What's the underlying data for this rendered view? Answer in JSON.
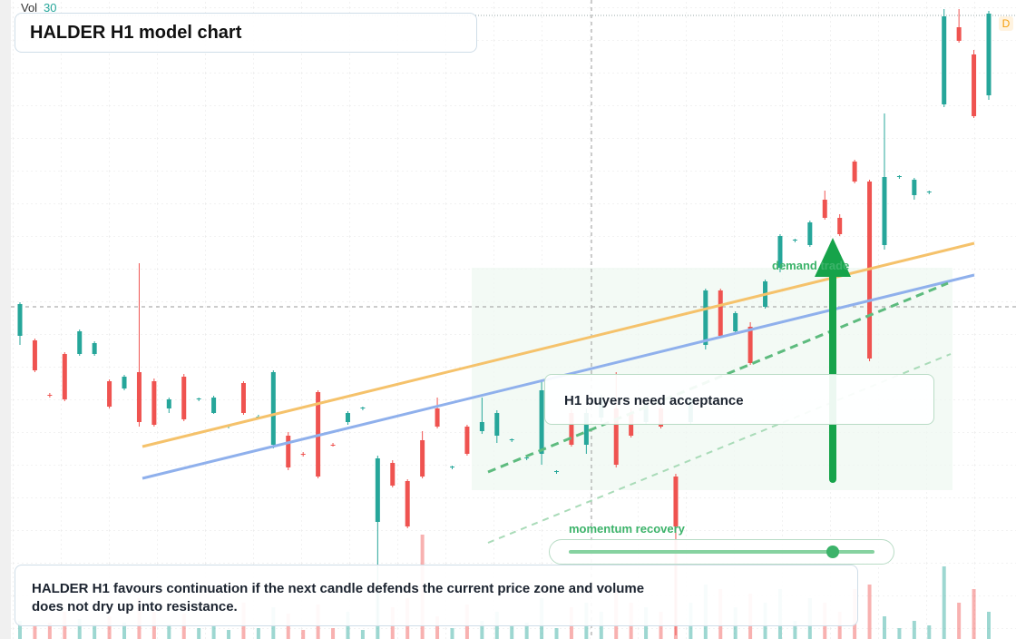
{
  "toolbar": {
    "vol_label": "Vol",
    "vol_value": 30
  },
  "title": "HALDER H1 model chart",
  "badge": "D",
  "annotations": {
    "demand": "demand trade",
    "acceptance": "H1 buyers need acceptance",
    "momentum": "momentum recovery"
  },
  "note": "HALDER H1 favours continuation if the next candle defends the current price zone and volume does not dry up into resistance.",
  "chart_data": {
    "type": "candlestick",
    "candles": [
      [
        330,
        367,
        320,
        365
      ],
      [
        325,
        327,
        290,
        292
      ],
      [
        265,
        267,
        262,
        264
      ],
      [
        310,
        312,
        258,
        260
      ],
      [
        310,
        337,
        308,
        335
      ],
      [
        310,
        324,
        308,
        322
      ],
      [
        280,
        282,
        250,
        252
      ],
      [
        272,
        287,
        270,
        285
      ],
      [
        290,
        410,
        230,
        235
      ],
      [
        280,
        283,
        230,
        232
      ],
      [
        250,
        262,
        245,
        260
      ],
      [
        285,
        288,
        236,
        238
      ],
      [
        260,
        262,
        258,
        261
      ],
      [
        245,
        264,
        244,
        262
      ],
      [
        230,
        232,
        228,
        231
      ],
      [
        278,
        280,
        243,
        245
      ],
      [
        240,
        243,
        238,
        241
      ],
      [
        210,
        292,
        206,
        290
      ],
      [
        220,
        224,
        182,
        185
      ],
      [
        200,
        202,
        197,
        199
      ],
      [
        268,
        270,
        173,
        175
      ],
      [
        210,
        212,
        208,
        209
      ],
      [
        235,
        247,
        232,
        245
      ],
      [
        250,
        252,
        248,
        251
      ],
      [
        125,
        198,
        10,
        195
      ],
      [
        190,
        193,
        163,
        165
      ],
      [
        170,
        172,
        118,
        120
      ],
      [
        215,
        225,
        173,
        175
      ],
      [
        250,
        262,
        228,
        230
      ],
      [
        185,
        187,
        183,
        186
      ],
      [
        230,
        232,
        198,
        200
      ],
      [
        225,
        262,
        222,
        235
      ],
      [
        220,
        248,
        212,
        245
      ],
      [
        215,
        217,
        213,
        216
      ],
      [
        195,
        197,
        193,
        196
      ],
      [
        200,
        282,
        188,
        270
      ],
      [
        180,
        182,
        178,
        181
      ],
      [
        245,
        250,
        208,
        210
      ],
      [
        210,
        250,
        200,
        245
      ],
      [
        240,
        265,
        235,
        260
      ],
      [
        250,
        290,
        185,
        188
      ],
      [
        245,
        250,
        218,
        220
      ],
      [
        235,
        258,
        232,
        255
      ],
      [
        250,
        255,
        228,
        230
      ],
      [
        175,
        178,
        0,
        120
      ],
      [
        235,
        262,
        232,
        260
      ],
      [
        320,
        382,
        315,
        380
      ],
      [
        380,
        382,
        328,
        330
      ],
      [
        335,
        357,
        332,
        355
      ],
      [
        340,
        345,
        298,
        300
      ],
      [
        362,
        392,
        360,
        390
      ],
      [
        405,
        442,
        400,
        440
      ],
      [
        435,
        437,
        433,
        436
      ],
      [
        430,
        457,
        428,
        455
      ],
      [
        480,
        490,
        458,
        460
      ],
      [
        460,
        464,
        440,
        442
      ],
      [
        522,
        524,
        498,
        500
      ],
      [
        500,
        502,
        302,
        305
      ],
      [
        430,
        575,
        425,
        505
      ],
      [
        505,
        507,
        503,
        506
      ],
      [
        485,
        504,
        480,
        502
      ],
      [
        488,
        490,
        486,
        489
      ],
      [
        585,
        690,
        582,
        682
      ],
      [
        670,
        690,
        653,
        655
      ],
      [
        640,
        645,
        570,
        572
      ],
      [
        595,
        688,
        590,
        685
      ]
    ],
    "volumes": [
      20,
      15,
      18,
      30,
      22,
      16,
      25,
      18,
      45,
      30,
      16,
      28,
      12,
      14,
      10,
      40,
      12,
      35,
      28,
      10,
      38,
      12,
      30,
      10,
      60,
      35,
      45,
      115,
      25,
      12,
      38,
      20,
      30,
      14,
      18,
      45,
      12,
      35,
      40,
      30,
      55,
      40,
      35,
      30,
      110,
      40,
      60,
      55,
      35,
      50,
      40,
      55,
      20,
      45,
      40,
      30,
      55,
      60,
      25,
      12,
      20,
      15,
      80,
      40,
      55,
      30
    ],
    "ylim": [
      0,
      700
    ],
    "volume_ylim": [
      0,
      704
    ],
    "colors": {
      "up": "#26a69a",
      "down": "#ef5350"
    }
  }
}
